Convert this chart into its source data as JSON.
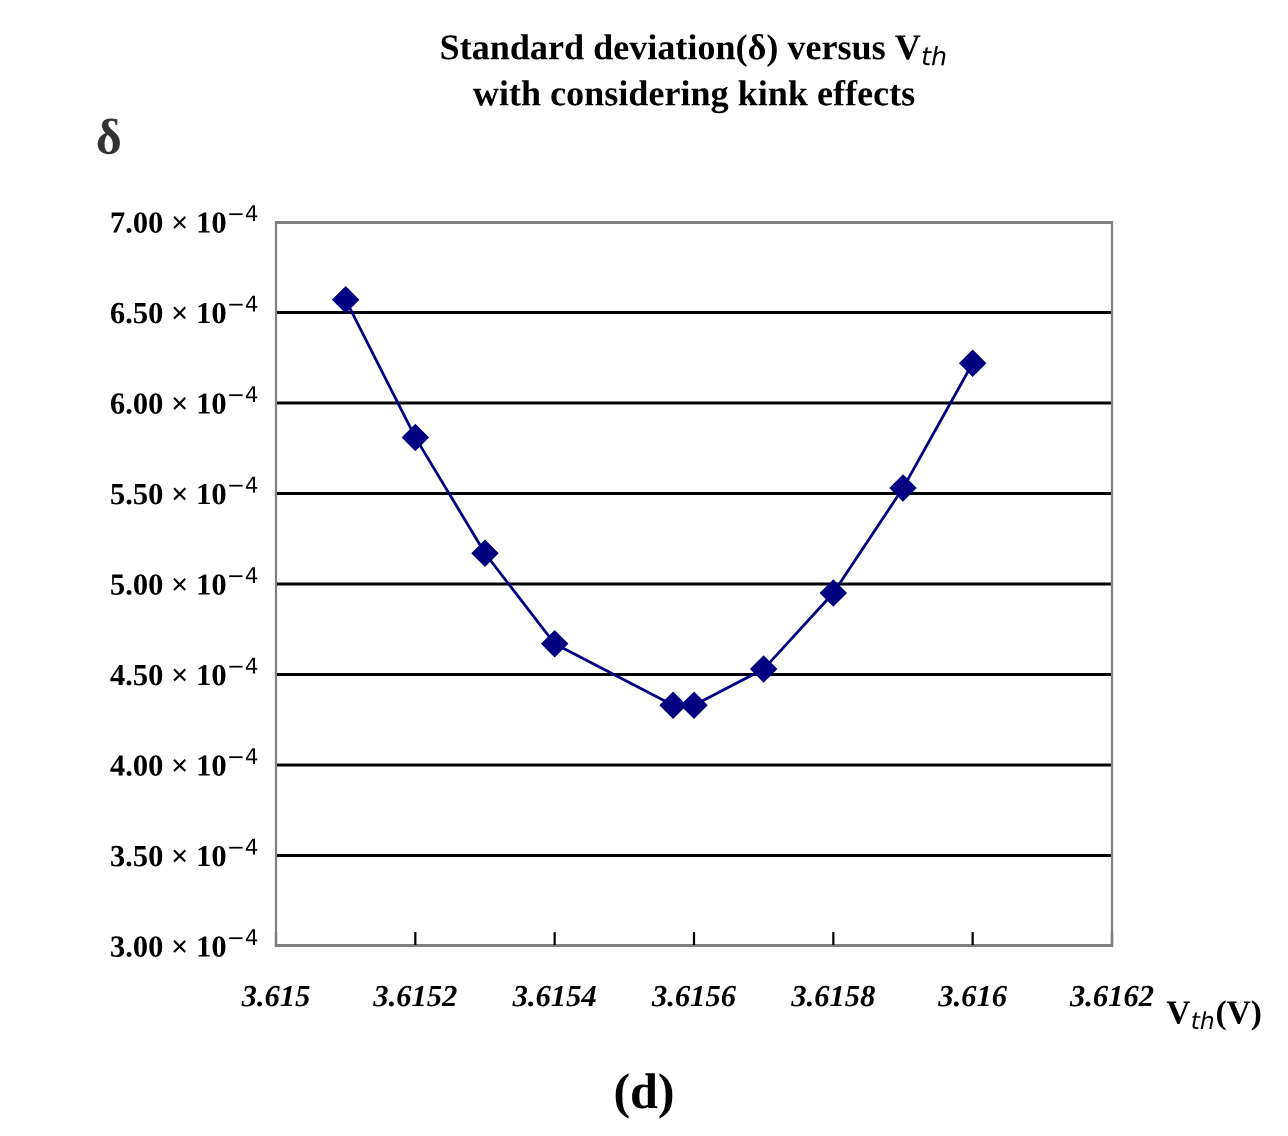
{
  "chart_data": {
    "type": "line",
    "title": "Standard deviation(δ) versus V$_{th}$\nwith considering kink effects",
    "xlabel": "V$_{th}$(V)",
    "ylabel": "δ",
    "x": [
      3.6151,
      3.6152,
      3.6153,
      3.6154,
      3.61557,
      3.6156,
      3.6157,
      3.6158,
      3.6159,
      3.616
    ],
    "series": [
      {
        "color": "#000080",
        "values": [
          0.000657,
          0.000581,
          0.000517,
          0.000467,
          0.000433,
          0.000433,
          0.000453,
          0.000495,
          0.000553,
          0.000622
        ]
      }
    ],
    "xlim": [
      3.615,
      3.6162
    ],
    "xticks": [
      3.615,
      3.6152,
      3.6154,
      3.6156,
      3.6158,
      3.616,
      3.6162
    ],
    "ylim": [
      0.0003,
      0.0007
    ],
    "yticks": [
      {
        "value": 0.0003,
        "label": "3.00 × 10$^{−4}$"
      },
      {
        "value": 0.00035,
        "label": "3.50 × 10$^{−4}$"
      },
      {
        "value": 0.0004,
        "label": "4.00 × 10$^{−4}$"
      },
      {
        "value": 0.00045,
        "label": "4.50 × 10$^{−4}$"
      },
      {
        "value": 0.0005,
        "label": "5.00 × 10$^{−4}$"
      },
      {
        "value": 0.00055,
        "label": "5.50 × 10$^{−4}$"
      },
      {
        "value": 0.0006,
        "label": "6.00 × 10$^{−4}$"
      },
      {
        "value": 0.00065,
        "label": "6.50 × 10$^{−4}$"
      },
      {
        "value": 0.0007,
        "label": "7.00 × 10$^{−4}$"
      }
    ],
    "grid": "y",
    "marker": "diamond",
    "line_style": "solid",
    "legend": false,
    "annotations": [
      "(d)"
    ]
  }
}
